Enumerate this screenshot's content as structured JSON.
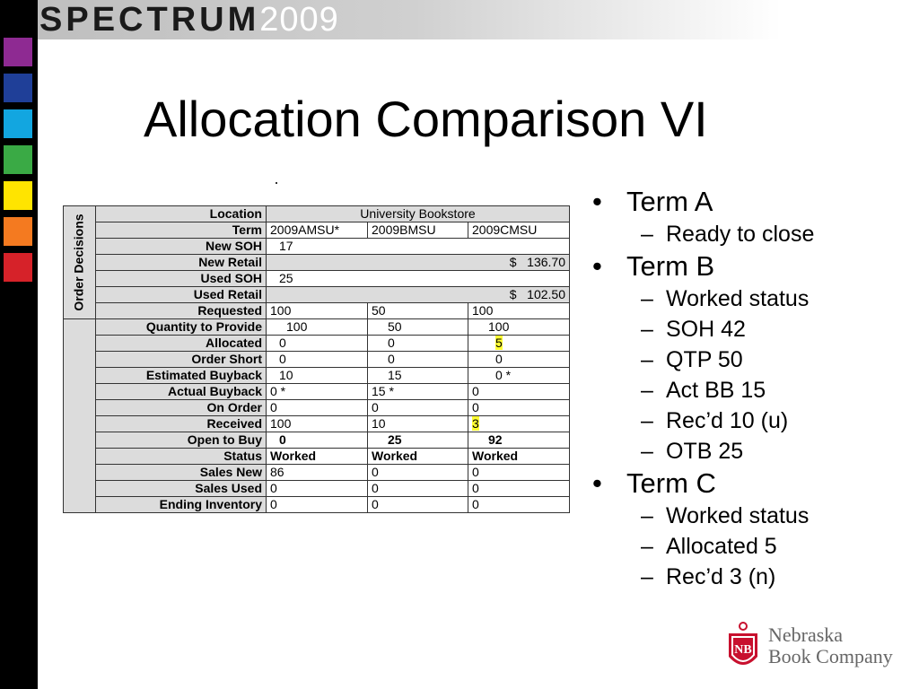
{
  "brand": {
    "word": "SPECTRUM",
    "year": "2009"
  },
  "title": "Allocation Comparison VI",
  "side_label": "Order Decisions",
  "colors": {
    "squares": [
      "#8e2a92",
      "#1f3f98",
      "#12a6e0",
      "#3aaa45",
      "#ffe400",
      "#f47a20",
      "#d62229"
    ],
    "highlight": "#ffff33"
  },
  "table": {
    "location": {
      "label": "Location",
      "value": "University Bookstore"
    },
    "term": {
      "label": "Term",
      "values": [
        "2009AMSU*",
        "2009BMSU",
        "2009CMSU"
      ]
    },
    "new_soh": {
      "label": "New SOH",
      "value": "17"
    },
    "new_retail": {
      "label": "New Retail",
      "value": "$   136.70"
    },
    "used_soh": {
      "label": "Used SOH",
      "value": "25"
    },
    "used_retail": {
      "label": "Used Retail",
      "value": "$   102.50"
    },
    "requested": {
      "label": "Requested",
      "values": [
        "100",
        "50",
        "100"
      ]
    },
    "qtp": {
      "label": "Quantity to Provide",
      "values": [
        "100",
        "50",
        "100"
      ]
    },
    "allocated": {
      "label": "Allocated",
      "values": [
        "0",
        "0",
        "5"
      ]
    },
    "order_short": {
      "label": "Order Short",
      "values": [
        "0",
        "0",
        "0"
      ]
    },
    "est_buyback": {
      "label": "Estimated Buyback",
      "values": [
        "10",
        "15",
        "0 *"
      ]
    },
    "act_buyback": {
      "label": "Actual Buyback",
      "values": [
        "0 *",
        "15 *",
        "0"
      ]
    },
    "on_order": {
      "label": "On Order",
      "values": [
        "0",
        "0",
        "0"
      ]
    },
    "received": {
      "label": "Received",
      "values": [
        "100",
        "10",
        "3"
      ]
    },
    "otb": {
      "label": "Open to Buy",
      "values": [
        "0",
        "25",
        "92"
      ]
    },
    "status": {
      "label": "Status",
      "values": [
        "Worked",
        "Worked",
        "Worked"
      ]
    },
    "sales_new": {
      "label": "Sales New",
      "values": [
        "86",
        "0",
        "0"
      ]
    },
    "sales_used": {
      "label": "Sales Used",
      "values": [
        "0",
        "0",
        "0"
      ]
    },
    "ending_inv": {
      "label": "Ending Inventory",
      "values": [
        "0",
        "0",
        "0"
      ]
    }
  },
  "bullets": [
    {
      "text": "Term A",
      "subs": [
        "Ready to close"
      ]
    },
    {
      "text": "Term B",
      "subs": [
        "Worked status",
        "SOH 42",
        "QTP 50",
        "Act BB 15",
        "Rec’d 10 (u)",
        "OTB 25"
      ]
    },
    {
      "text": "Term C",
      "subs": [
        "Worked status",
        "Allocated 5",
        "Rec’d 3 (n)"
      ]
    }
  ],
  "logo": {
    "line1": "Nebraska",
    "line2": "Book Company",
    "mark": "NB"
  }
}
